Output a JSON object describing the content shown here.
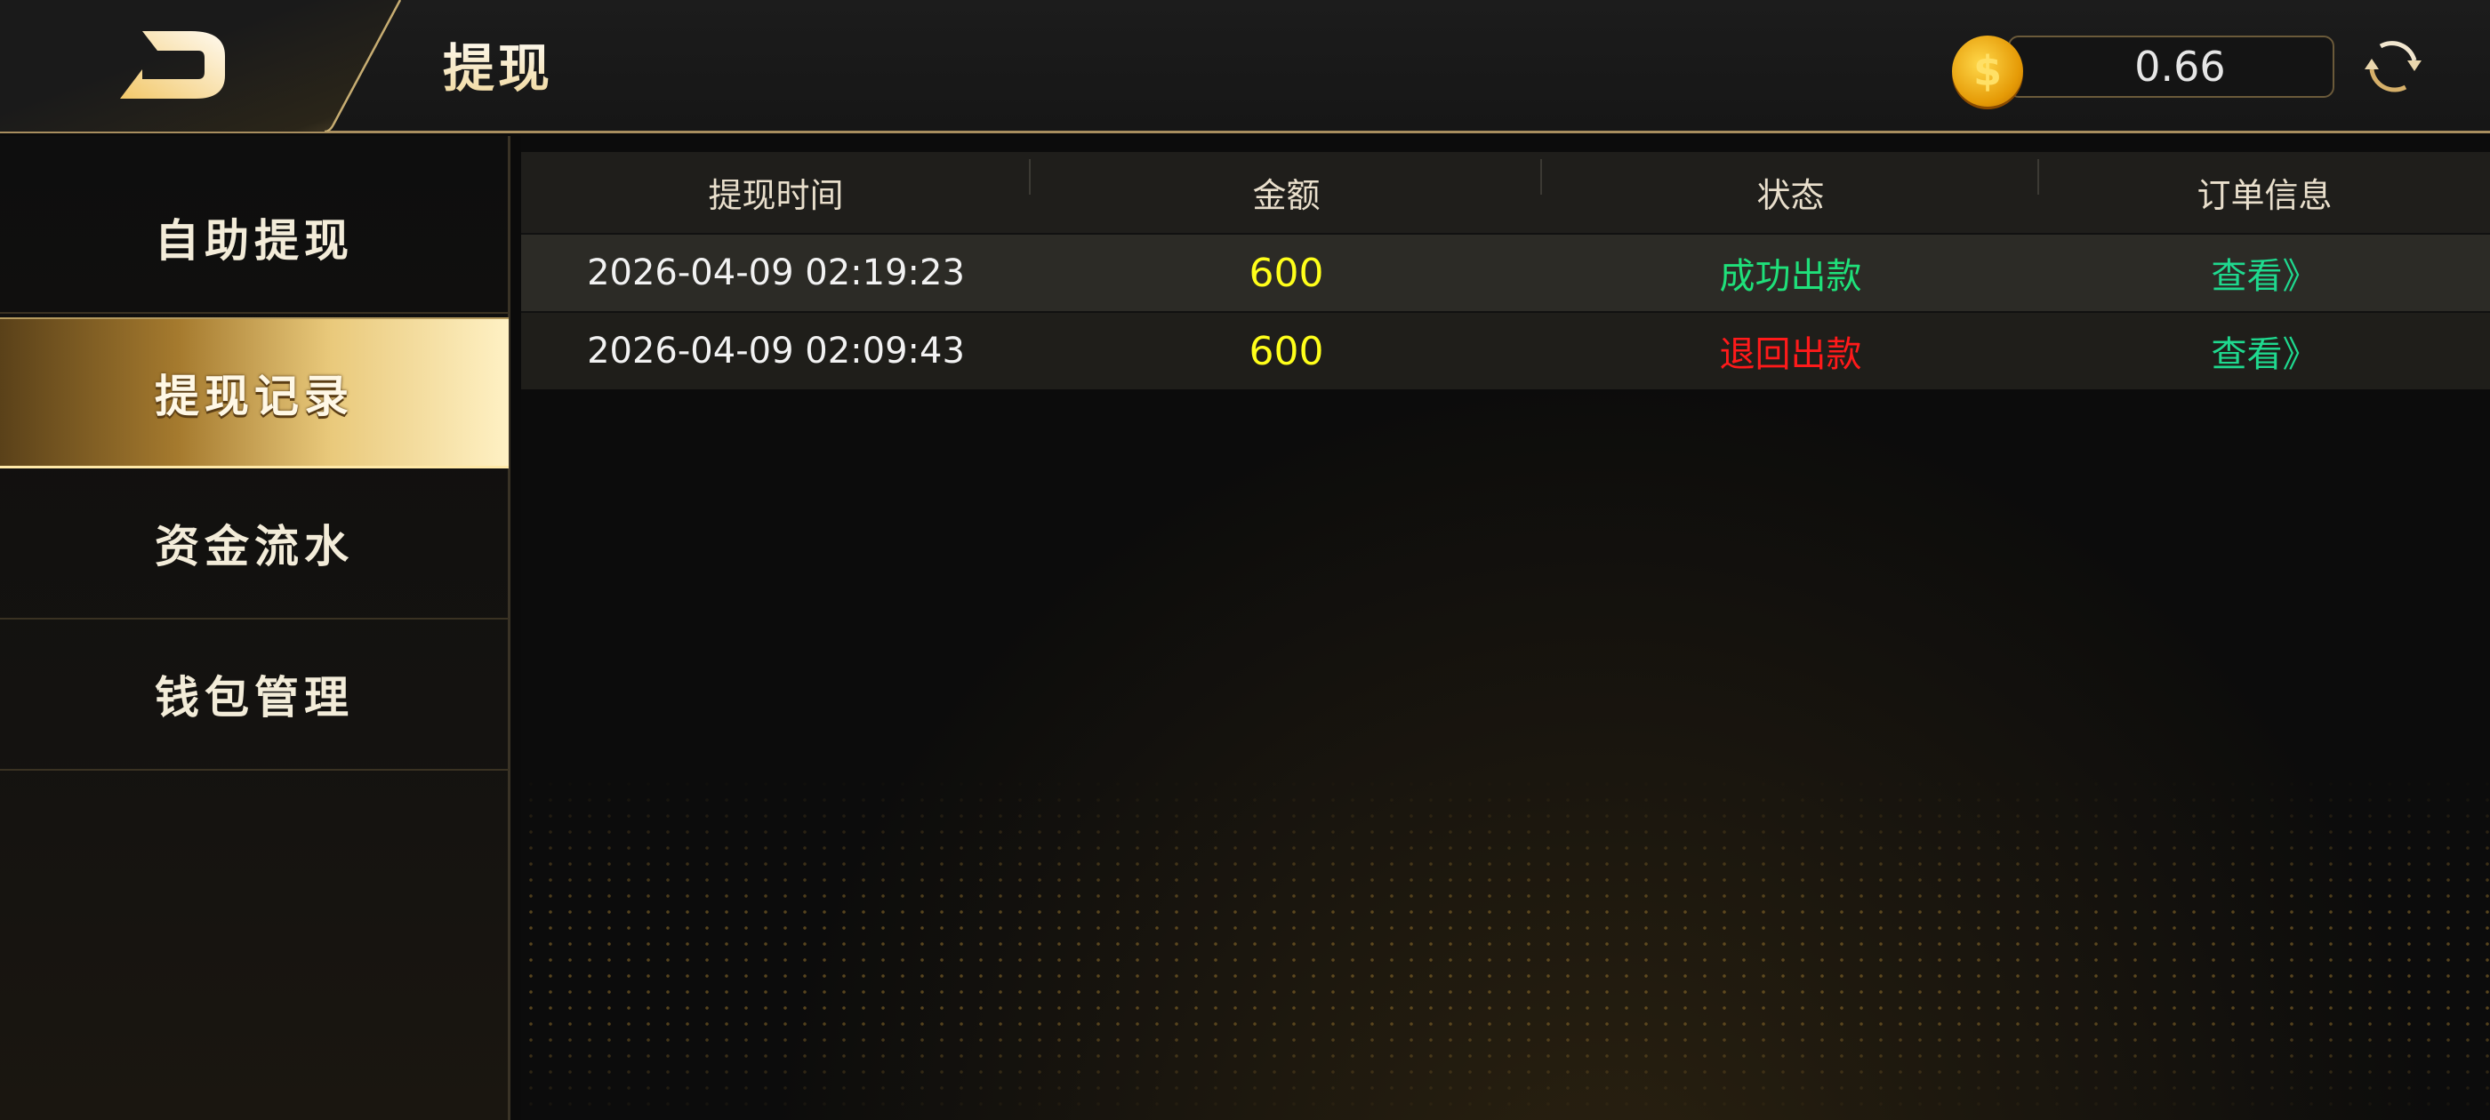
{
  "header": {
    "title": "提现",
    "balance": "0.66",
    "logo_icon": "back-logo-icon",
    "coin_icon": "coin-dollar-icon",
    "refresh_icon": "refresh-icon",
    "coin_symbol": "$"
  },
  "sidebar": {
    "items": [
      {
        "label": "自助提现",
        "active": false
      },
      {
        "label": "提现记录",
        "active": true
      },
      {
        "label": "资金流水",
        "active": false
      },
      {
        "label": "钱包管理",
        "active": false
      }
    ]
  },
  "table": {
    "columns": [
      "提现时间",
      "金额",
      "状态",
      "订单信息"
    ],
    "rows": [
      {
        "time": "2026-04-09 02:19:23",
        "amount": "600",
        "status": "成功出款",
        "status_color": "#1fe07a",
        "action": "查看》"
      },
      {
        "time": "2026-04-09 02:09:43",
        "amount": "600",
        "status": "退回出款",
        "status_color": "#ff1a1a",
        "action": "查看》"
      }
    ]
  },
  "colors": {
    "accent_gold": "#e9c97b",
    "amount": "#ffff1a",
    "link": "#1fd98f"
  }
}
